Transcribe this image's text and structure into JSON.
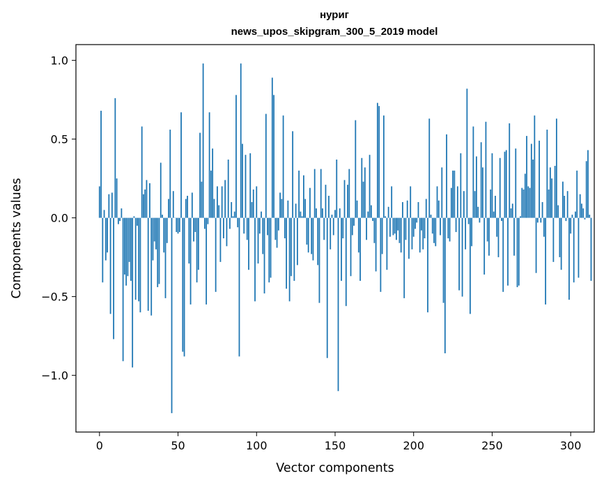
{
  "chart_data": {
    "type": "bar",
    "title": "нуриг",
    "subtitle": "news_upos_skipgram_300_5_2019 model",
    "xlabel": "Vector components",
    "ylabel": "Components values",
    "xlim": [
      -15,
      315
    ],
    "ylim": [
      -1.36,
      1.1
    ],
    "x_ticks": [
      0,
      50,
      100,
      150,
      200,
      250,
      300
    ],
    "x_tick_labels": [
      "0",
      "50",
      "100",
      "150",
      "200",
      "250",
      "300"
    ],
    "y_ticks": [
      1.0,
      0.5,
      0.0,
      -0.5,
      -1.0
    ],
    "y_tick_labels": [
      "1.0",
      "0.5",
      "0.0",
      "−0.5",
      "−1.0"
    ],
    "bar_color": "#1f77b4",
    "values": [
      0.2,
      0.68,
      -0.41,
      0.05,
      -0.27,
      -0.22,
      0.15,
      -0.61,
      0.16,
      -0.77,
      0.76,
      0.25,
      -0.04,
      -0.02,
      0.06,
      -0.91,
      -0.36,
      -0.43,
      -0.37,
      -0.28,
      -0.4,
      -0.95,
      0.01,
      -0.52,
      -0.05,
      -0.53,
      -0.6,
      0.58,
      0.15,
      0.18,
      0.24,
      -0.59,
      0.22,
      -0.62,
      -0.27,
      -0.15,
      -0.2,
      -0.44,
      -0.42,
      0.35,
      0.02,
      -0.22,
      -0.51,
      -0.16,
      0.12,
      0.56,
      -1.24,
      0.17,
      0.0,
      -0.09,
      -0.1,
      -0.09,
      0.67,
      -0.85,
      -0.88,
      0.12,
      0.14,
      -0.29,
      -0.55,
      0.16,
      -0.15,
      -0.09,
      -0.41,
      -0.33,
      0.54,
      0.23,
      0.98,
      -0.07,
      -0.55,
      -0.04,
      0.67,
      0.3,
      0.44,
      0.12,
      -0.47,
      0.2,
      0.08,
      -0.28,
      0.2,
      -0.13,
      0.24,
      -0.18,
      0.37,
      -0.07,
      0.1,
      0.01,
      0.04,
      0.78,
      -0.06,
      -0.88,
      0.98,
      0.47,
      -0.1,
      0.4,
      -0.14,
      -0.33,
      0.41,
      0.1,
      0.18,
      -0.53,
      0.2,
      -0.29,
      -0.1,
      0.04,
      -0.23,
      -0.48,
      0.66,
      -0.11,
      -0.41,
      -0.38,
      0.89,
      0.78,
      -0.14,
      -0.19,
      -0.08,
      0.16,
      0.12,
      0.65,
      -0.13,
      -0.45,
      0.11,
      -0.53,
      -0.37,
      0.55,
      -0.4,
      0.09,
      -0.3,
      0.3,
      0.04,
      0.01,
      0.27,
      0.12,
      -0.17,
      -0.22,
      0.19,
      -0.23,
      -0.27,
      0.31,
      0.06,
      -0.3,
      -0.54,
      0.31,
      0.06,
      -0.14,
      0.21,
      -0.89,
      0.14,
      -0.2,
      0.02,
      -0.11,
      0.05,
      0.37,
      -1.1,
      0.06,
      -0.4,
      -0.13,
      0.24,
      -0.56,
      0.21,
      0.31,
      -0.37,
      -0.11,
      -0.05,
      0.62,
      0.11,
      -0.22,
      -0.4,
      0.38,
      0.23,
      0.32,
      -0.14,
      0.04,
      0.4,
      0.08,
      -0.02,
      -0.16,
      -0.34,
      0.73,
      0.71,
      -0.47,
      -0.23,
      0.65,
      0.01,
      -0.33,
      0.07,
      -0.12,
      0.2,
      -0.11,
      -0.1,
      -0.14,
      -0.08,
      -0.16,
      -0.22,
      0.1,
      -0.51,
      -0.14,
      0.11,
      -0.26,
      0.2,
      -0.2,
      -0.12,
      -0.07,
      -0.03,
      0.1,
      -0.22,
      -0.08,
      -0.2,
      -0.13,
      0.12,
      -0.6,
      0.63,
      0.02,
      -0.1,
      -0.16,
      -0.18,
      0.2,
      0.11,
      -0.11,
      0.32,
      -0.54,
      -0.86,
      0.53,
      -0.13,
      -0.15,
      0.19,
      0.3,
      0.3,
      -0.09,
      0.2,
      -0.46,
      0.41,
      -0.5,
      0.17,
      -0.2,
      0.82,
      -0.04,
      -0.61,
      -0.18,
      0.58,
      0.17,
      0.39,
      0.07,
      -0.03,
      0.48,
      0.32,
      -0.36,
      0.61,
      -0.15,
      -0.24,
      0.18,
      0.41,
      0.04,
      0.14,
      -0.12,
      -0.25,
      0.38,
      -0.02,
      -0.47,
      0.42,
      0.43,
      -0.43,
      0.6,
      0.06,
      0.09,
      -0.24,
      0.44,
      -0.44,
      -0.43,
      0.01,
      0.19,
      0.18,
      0.28,
      0.52,
      0.2,
      0.19,
      0.47,
      0.37,
      0.65,
      -0.35,
      -0.03,
      0.49,
      -0.03,
      0.1,
      -0.12,
      -0.55,
      0.56,
      0.18,
      0.32,
      0.25,
      -0.28,
      0.33,
      0.63,
      0.08,
      -0.25,
      -0.33,
      0.23,
      0.14,
      -0.02,
      0.17,
      -0.52,
      -0.1,
      0.02,
      -0.41,
      0.04,
      0.3,
      -0.38,
      0.15,
      0.09,
      0.06,
      -0.01,
      0.36,
      0.43,
      0.02,
      -0.4
    ]
  }
}
